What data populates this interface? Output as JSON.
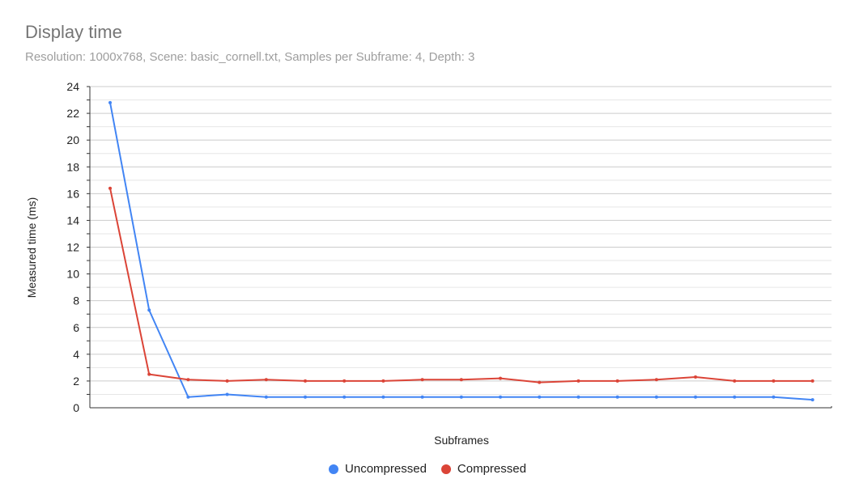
{
  "chart_data": {
    "type": "line",
    "title": "Display time",
    "subtitle": "Resolution: 1000x768, Scene: basic_cornell.txt, Samples per Subframe: 4, Depth: 3",
    "xlabel": "Subframes",
    "ylabel": "Measured time (ms)",
    "ylim": [
      0,
      24
    ],
    "yticks": [
      "0",
      "2",
      "4",
      "6",
      "8",
      "10",
      "12",
      "14",
      "16",
      "18",
      "20",
      "22",
      "24"
    ],
    "grid": true,
    "legend_position": "bottom",
    "x": [
      1,
      2,
      3,
      4,
      5,
      6,
      7,
      8,
      9,
      10,
      11,
      12,
      13,
      14,
      15,
      16,
      17,
      18,
      19
    ],
    "series": [
      {
        "name": "Uncompressed",
        "color": "#4285f4",
        "values": [
          22.8,
          7.3,
          0.8,
          1.0,
          0.8,
          0.8,
          0.8,
          0.8,
          0.8,
          0.8,
          0.8,
          0.8,
          0.8,
          0.8,
          0.8,
          0.8,
          0.8,
          0.8,
          0.6
        ]
      },
      {
        "name": "Compressed",
        "color": "#db4437",
        "values": [
          16.4,
          2.5,
          2.1,
          2.0,
          2.1,
          2.0,
          2.0,
          2.0,
          2.1,
          2.1,
          2.2,
          1.9,
          2.0,
          2.0,
          2.1,
          2.3,
          2.0,
          2.0,
          2.0
        ]
      }
    ]
  }
}
